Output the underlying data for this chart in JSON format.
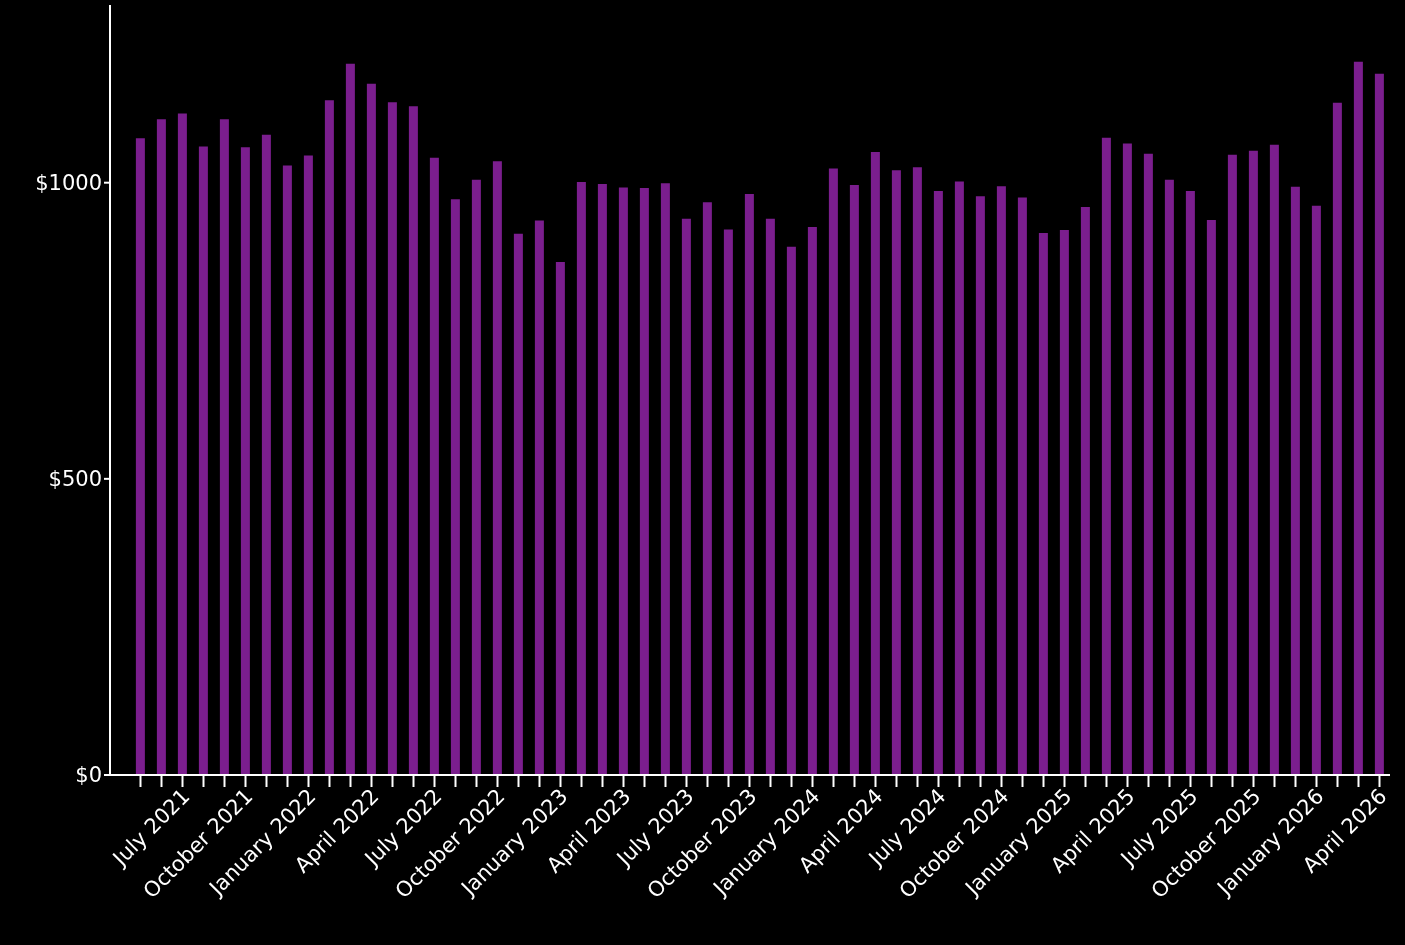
{
  "chart_data": {
    "type": "bar",
    "categories": [
      null,
      null,
      "July 2021",
      null,
      null,
      "October 2021",
      null,
      null,
      "January 2022",
      null,
      null,
      "April 2022",
      null,
      null,
      "July 2022",
      null,
      null,
      "October 2022",
      null,
      null,
      "January 2023",
      null,
      null,
      "April 2023",
      null,
      null,
      "July 2023",
      null,
      null,
      "October 2023",
      null,
      null,
      "January 2024",
      null,
      null,
      "April 2024",
      null,
      null,
      "July 2024",
      null,
      null,
      "October 2024",
      null,
      null,
      "January 2025",
      null,
      null,
      "April 2025",
      null,
      null,
      "July 2025",
      null,
      null,
      "October 2025",
      null,
      null,
      "January 2026",
      null,
      null,
      "April 2026"
    ],
    "values": [
      1075,
      1107,
      1117,
      1061,
      1107,
      1060,
      1081,
      1029,
      1046,
      1139,
      1201,
      1167,
      1136,
      1129,
      1042,
      972,
      1005,
      1036,
      914,
      936,
      866,
      1001,
      998,
      992,
      991,
      999,
      939,
      967,
      921,
      981,
      939,
      892,
      925,
      1024,
      996,
      1052,
      1021,
      1026,
      986,
      1002,
      977,
      994,
      975,
      915,
      920,
      959,
      1076,
      1066,
      1049,
      1005,
      986,
      937,
      1047,
      1054,
      1064,
      993,
      961,
      1135,
      1204,
      1184
    ],
    "color": "#7b1e8e",
    "ylim": [
      0,
      1300
    ],
    "yticks": [
      {
        "value": 0,
        "label": "$0"
      },
      {
        "value": 500,
        "label": "$500"
      },
      {
        "value": 1000,
        "label": "$1000"
      }
    ],
    "grid": false,
    "legend": false
  }
}
